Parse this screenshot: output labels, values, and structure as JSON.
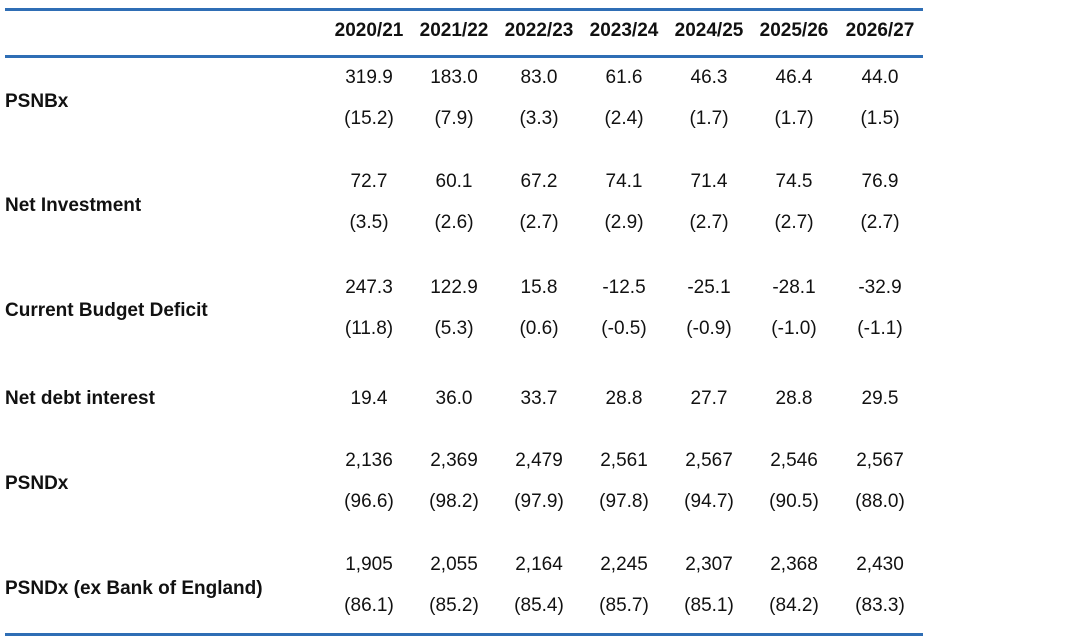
{
  "columns": [
    "2020/21",
    "2021/22",
    "2022/23",
    "2023/24",
    "2024/25",
    "2025/26",
    "2026/27"
  ],
  "rows": [
    {
      "label": "PSNBx",
      "values": [
        "319.9",
        "183.0",
        "83.0",
        "61.6",
        "46.3",
        "46.4",
        "44.0"
      ],
      "pct": [
        "(15.2)",
        "(7.9)",
        "(3.3)",
        "(2.4)",
        "(1.7)",
        "(1.7)",
        "(1.5)"
      ]
    },
    {
      "label": "Net Investment",
      "values": [
        "72.7",
        "60.1",
        "67.2",
        "74.1",
        "71.4",
        "74.5",
        "76.9"
      ],
      "pct": [
        "(3.5)",
        "(2.6)",
        "(2.7)",
        "(2.9)",
        "(2.7)",
        "(2.7)",
        "(2.7)"
      ]
    },
    {
      "label": "Current Budget Deficit",
      "values": [
        "247.3",
        "122.9",
        "15.8",
        "-12.5",
        "-25.1",
        "-28.1",
        "-32.9"
      ],
      "pct": [
        "(11.8)",
        "(5.3)",
        "(0.6)",
        "(-0.5)",
        "(-0.9)",
        "(-1.0)",
        "(-1.1)"
      ]
    },
    {
      "label": "Net debt interest",
      "values": [
        "19.4",
        "36.0",
        "33.7",
        "28.8",
        "27.7",
        "28.8",
        "29.5"
      ],
      "pct": []
    },
    {
      "label": "PSNDx",
      "values": [
        "2,136",
        "2,369",
        "2,479",
        "2,561",
        "2,567",
        "2,546",
        "2,567"
      ],
      "pct": [
        "(96.6)",
        "(98.2)",
        "(97.9)",
        "(97.8)",
        "(94.7)",
        "(90.5)",
        "(88.0)"
      ]
    },
    {
      "label": "PSNDx (ex Bank of England)",
      "values": [
        "1,905",
        "2,055",
        "2,164",
        "2,245",
        "2,307",
        "2,368",
        "2,430"
      ],
      "pct": [
        "(86.1)",
        "(85.2)",
        "(85.4)",
        "(85.7)",
        "(85.1)",
        "(84.2)",
        "(83.3)"
      ]
    }
  ],
  "colors": {
    "rule": "#2f6eb5"
  }
}
